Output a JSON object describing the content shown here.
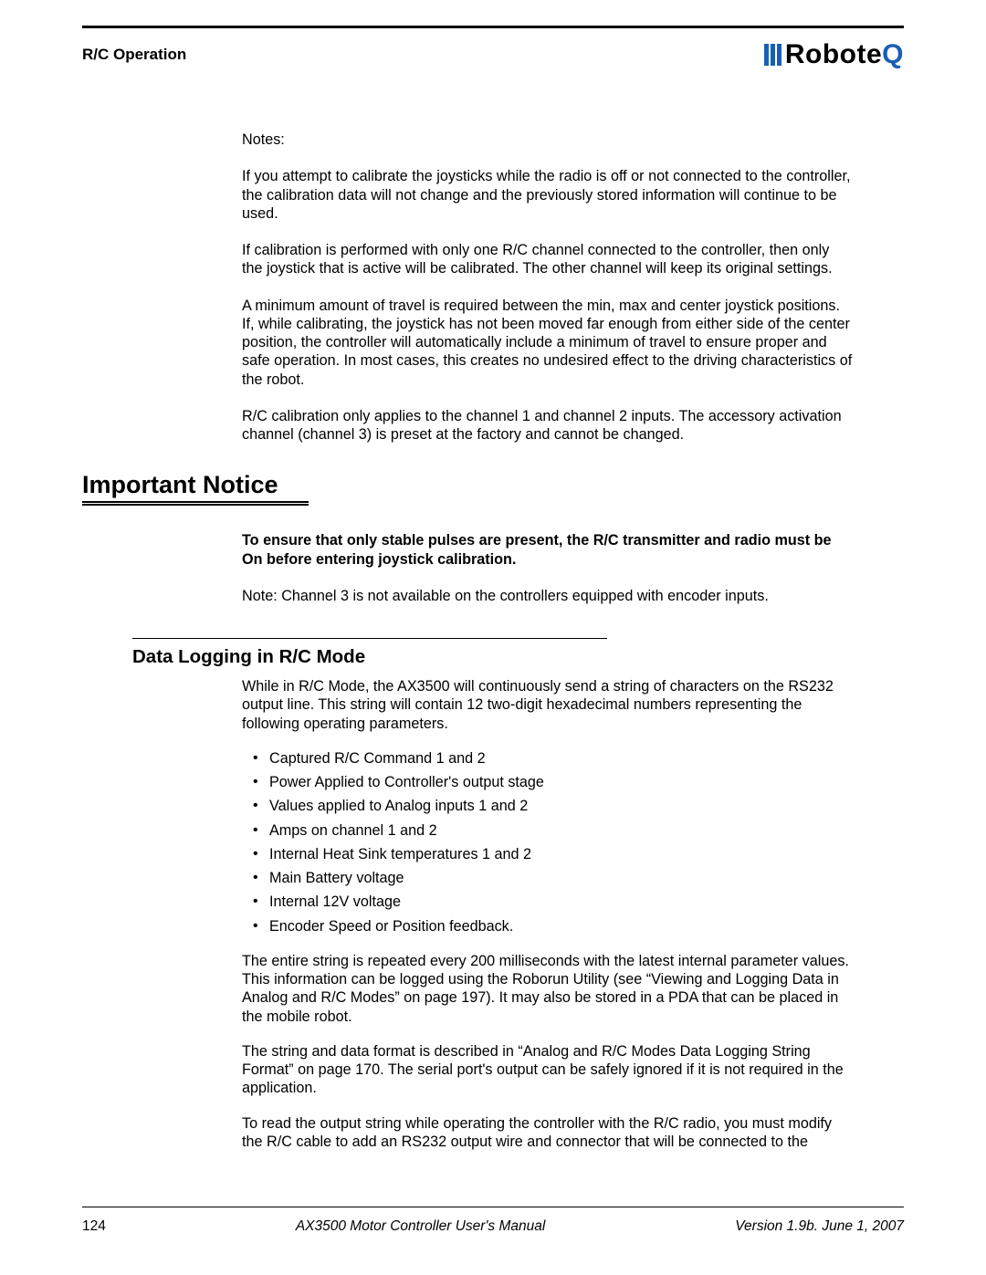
{
  "header": {
    "section_label": "R/C Operation",
    "logo_prefix": "Robote",
    "logo_suffix": "Q",
    "logo_bar_color": "#1a5fb4"
  },
  "notes_label": "Notes:",
  "paragraphs": {
    "p1": "If you attempt to calibrate the joysticks while the radio is off or not connected to the controller, the calibration data will not change and the previously stored information will continue to be used.",
    "p2": "If calibration is performed with only one R/C channel connected to the controller, then only the joystick that is active will be calibrated. The other channel will keep its original settings.",
    "p3": "A minimum amount of travel is required between the min, max and center joystick positions. If, while calibrating, the joystick has not been moved far enough from either side of the center position, the controller will automatically include a minimum of travel to ensure proper and safe operation. In most cases, this creates no undesired effect to the driving characteristics of the robot.",
    "p4": "R/C calibration only applies to the channel 1 and channel 2 inputs. The accessory activation channel (channel 3) is preset at the factory and cannot be changed."
  },
  "notice": {
    "heading": "Important Notice",
    "bold_text": "To ensure that only stable pulses are present, the R/C transmitter and radio must be On before entering joystick calibration.",
    "note_text": "Note: Channel 3 is not available on the controllers equipped with encoder inputs."
  },
  "subsection": {
    "heading": "Data Logging in R/C Mode",
    "intro": "While in R/C Mode, the AX3500 will continuously send a string of characters on the RS232 output line. This string will contain 12 two-digit hexadecimal numbers representing the following operating parameters.",
    "bullets": [
      "Captured R/C Command 1 and 2",
      "Power Applied to Controller's output stage",
      "Values applied to Analog inputs 1 and 2",
      "Amps on channel 1 and 2",
      "Internal Heat Sink temperatures 1 and 2",
      "Main Battery voltage",
      "Internal 12V voltage",
      "Encoder Speed or Position feedback."
    ],
    "p_after_1": "The entire string is repeated every 200 milliseconds with the latest internal parameter values. This information can be logged using the Roborun Utility (see “Viewing and Logging Data in Analog and R/C Modes” on page 197). It may also be stored in a PDA that can be placed in the mobile robot.",
    "p_after_2": "The string and data format is described in “Analog and R/C Modes Data Logging String Format” on page 170. The serial port's output can be safely ignored if it is not required in the application.",
    "p_after_3": "To read the output string while operating the controller with the R/C radio, you must modify the R/C cable to add an RS232 output wire and connector that will be connected to the"
  },
  "footer": {
    "page_number": "124",
    "manual_title": "AX3500 Motor Controller User's Manual",
    "version": "Version 1.9b. June 1, 2007"
  }
}
